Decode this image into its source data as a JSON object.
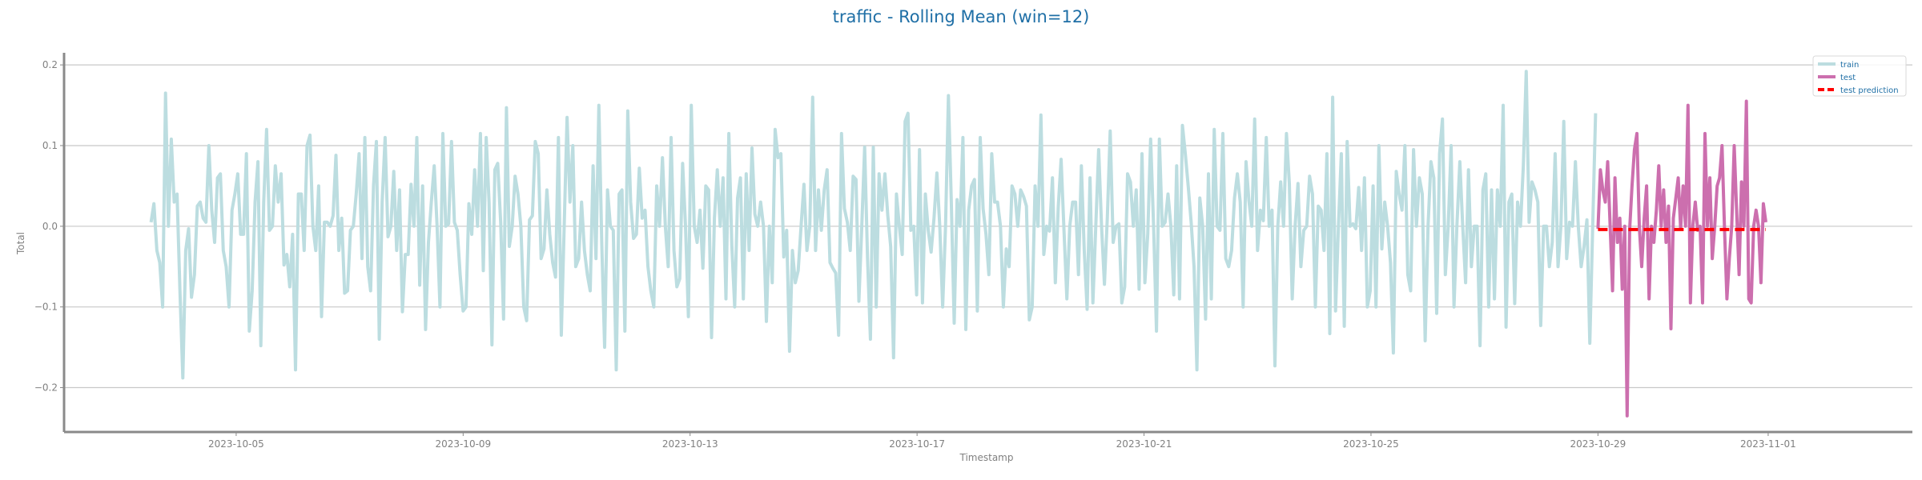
{
  "chart_data": {
    "type": "line",
    "title": "traffic - Rolling Mean (win=12)",
    "xlabel": "Timestamp",
    "ylabel": "Total",
    "ylim": [
      -0.255,
      0.215
    ],
    "xlim": [
      "2023-10-01T23:12",
      "2023-11-03T13:00"
    ],
    "x_ticks": [
      "2023-10-05",
      "2023-10-09",
      "2023-10-13",
      "2023-10-17",
      "2023-10-21",
      "2023-10-25",
      "2023-10-29",
      "2023-11-01"
    ],
    "y_ticks": [
      -0.2,
      -0.1,
      0.0,
      0.1,
      0.2
    ],
    "y_tick_labels": [
      "−0.2",
      "−0.1",
      "0.0",
      "0.1",
      "0.2"
    ],
    "grid": true,
    "legend_position": "top-right",
    "legend": [
      "train",
      "test",
      "test prediction"
    ],
    "series": [
      {
        "name": "train",
        "color": "#bcdde0",
        "style": "solid",
        "x_start": "2023-10-03T12:00",
        "x_end": "2023-10-28T23:00",
        "values": [
          0.005,
          0.028,
          -0.03,
          -0.045,
          -0.1,
          0.165,
          0.0,
          0.108,
          0.03,
          0.04,
          -0.08,
          -0.188,
          -0.03,
          -0.003,
          -0.088,
          -0.06,
          0.025,
          0.03,
          0.01,
          0.005,
          0.1,
          0.02,
          -0.02,
          0.06,
          0.065,
          -0.03,
          -0.05,
          -0.1,
          0.02,
          0.04,
          0.065,
          -0.01,
          -0.01,
          0.09,
          -0.13,
          -0.08,
          0.03,
          0.08,
          -0.148,
          0.03,
          0.12,
          -0.005,
          0.0,
          0.075,
          0.03,
          0.065,
          -0.048,
          -0.035,
          -0.075,
          -0.01,
          -0.178,
          0.04,
          0.04,
          -0.03,
          0.1,
          0.113,
          0.0,
          -0.03,
          0.05,
          -0.112,
          0.005,
          0.005,
          0.0,
          0.013,
          0.088,
          -0.03,
          0.01,
          -0.083,
          -0.08,
          -0.005,
          0.0,
          0.04,
          0.09,
          -0.04,
          0.11,
          -0.05,
          -0.08,
          0.05,
          0.105,
          -0.14,
          0.03,
          0.11,
          -0.013,
          0.0,
          0.068,
          -0.03,
          0.045,
          -0.106,
          -0.035,
          -0.035,
          0.052,
          0.0,
          0.11,
          -0.073,
          0.05,
          -0.128,
          -0.02,
          0.03,
          0.075,
          0.0,
          -0.1,
          0.115,
          0.0,
          0.003,
          0.105,
          0.005,
          -0.005,
          -0.06,
          -0.105,
          -0.1,
          0.028,
          -0.01,
          0.07,
          0.0,
          0.115,
          -0.055,
          0.11,
          0.03,
          -0.147,
          0.07,
          0.078,
          0.005,
          -0.115,
          0.147,
          -0.025,
          0.0,
          0.062,
          0.04,
          0.0,
          -0.1,
          -0.117,
          0.008,
          0.013,
          0.105,
          0.09,
          -0.04,
          -0.028,
          0.045,
          -0.01,
          -0.045,
          -0.063,
          0.11,
          -0.135,
          0.0,
          0.135,
          0.03,
          0.1,
          -0.05,
          -0.04,
          0.03,
          -0.03,
          -0.06,
          -0.08,
          0.075,
          -0.04,
          0.15,
          -0.02,
          -0.15,
          0.045,
          0.0,
          -0.005,
          -0.178,
          0.04,
          0.045,
          -0.13,
          0.143,
          0.03,
          -0.015,
          -0.01,
          0.072,
          0.01,
          0.02,
          -0.05,
          -0.08,
          -0.1,
          0.05,
          0.0,
          0.085,
          0.0,
          -0.05,
          0.11,
          -0.03,
          -0.075,
          -0.065,
          0.078,
          0.0,
          -0.112,
          0.15,
          0.0,
          -0.02,
          0.02,
          -0.052,
          0.05,
          0.045,
          -0.138,
          0.01,
          0.07,
          0.0,
          0.06,
          -0.09,
          0.115,
          -0.023,
          -0.1,
          0.035,
          0.06,
          -0.09,
          0.065,
          -0.03,
          0.097,
          0.015,
          0.0,
          0.03,
          0.0,
          -0.118,
          0.0,
          -0.07,
          0.12,
          0.085,
          0.09,
          -0.038,
          -0.005,
          -0.155,
          -0.03,
          -0.07,
          -0.055,
          0.0,
          0.052,
          -0.03,
          0.0,
          0.16,
          -0.03,
          0.045,
          -0.005,
          0.045,
          0.07,
          -0.045,
          -0.052,
          -0.058,
          -0.135,
          0.115,
          0.022,
          0.005,
          -0.03,
          0.062,
          0.058,
          -0.093,
          0.0,
          0.098,
          -0.04,
          -0.14,
          0.098,
          -0.1,
          0.065,
          0.02,
          0.065,
          0.013,
          -0.025,
          -0.163,
          0.04,
          0.0,
          -0.035,
          0.13,
          0.14,
          -0.005,
          0.0,
          -0.085,
          0.095,
          -0.095,
          0.04,
          -0.005,
          -0.032,
          0.01,
          0.066,
          0.0,
          -0.1,
          0.0,
          0.162,
          0.03,
          -0.12,
          0.033,
          0.0,
          0.11,
          -0.128,
          0.02,
          0.05,
          0.058,
          -0.105,
          0.11,
          0.022,
          -0.01,
          -0.06,
          0.09,
          0.03,
          0.03,
          0.0,
          -0.1,
          -0.028,
          -0.05,
          0.05,
          0.04,
          0.0,
          0.045,
          0.037,
          0.025,
          -0.116,
          -0.1,
          0.05,
          0.0,
          0.138,
          -0.035,
          0.0,
          -0.006,
          0.06,
          -0.07,
          0.023,
          0.083,
          -0.005,
          -0.09,
          0.0,
          0.03,
          0.03,
          -0.06,
          0.075,
          -0.03,
          -0.103,
          0.06,
          -0.095,
          0.0,
          0.095,
          0.0,
          -0.072,
          0.01,
          0.118,
          -0.02,
          0.0,
          0.003,
          -0.095,
          -0.075,
          0.065,
          0.055,
          0.0,
          0.045,
          -0.078,
          0.09,
          -0.07,
          -0.01,
          0.108,
          0.0,
          -0.13,
          0.108,
          0.0,
          0.005,
          0.04,
          0.0,
          -0.085,
          0.075,
          -0.09,
          0.125,
          0.09,
          0.05,
          0.005,
          -0.05,
          -0.178,
          0.035,
          0.0,
          -0.115,
          0.065,
          -0.09,
          0.12,
          0.0,
          -0.005,
          0.115,
          -0.04,
          -0.05,
          -0.03,
          0.035,
          0.065,
          0.03,
          -0.1,
          0.08,
          0.032,
          0.0,
          0.133,
          -0.03,
          0.02,
          0.007,
          0.11,
          0.0,
          0.02,
          -0.173,
          0.0,
          0.055,
          0.0,
          0.115,
          0.053,
          -0.09,
          0.0,
          0.053,
          -0.05,
          -0.005,
          0.0,
          0.062,
          0.04,
          -0.1,
          0.025,
          0.02,
          -0.03,
          0.09,
          -0.133,
          0.16,
          -0.105,
          0.0,
          0.09,
          -0.124,
          0.105,
          0.0,
          0.003,
          -0.003,
          0.048,
          -0.03,
          0.06,
          -0.1,
          -0.08,
          0.05,
          -0.1,
          0.1,
          -0.028,
          0.03,
          0.0,
          -0.045,
          -0.157,
          0.068,
          0.04,
          0.02,
          0.1,
          -0.06,
          -0.08,
          0.095,
          0.0,
          0.06,
          0.04,
          -0.142,
          0.0,
          0.08,
          0.06,
          -0.108,
          0.09,
          0.133,
          -0.06,
          0.0,
          0.1,
          -0.1,
          0.0,
          0.08,
          0.0,
          -0.07,
          0.07,
          -0.05,
          0.0,
          0.0,
          -0.148,
          0.045,
          0.065,
          -0.1,
          0.045,
          -0.09,
          0.045,
          0.0,
          0.15,
          -0.125,
          0.03,
          0.04,
          -0.096,
          0.03,
          0.0,
          0.075,
          0.192,
          0.005,
          0.055,
          0.045,
          0.03,
          -0.123,
          0.0,
          0.0,
          -0.05,
          -0.02,
          0.09,
          -0.05,
          0.0,
          0.13,
          -0.04,
          0.005,
          0.0,
          0.08,
          0.0,
          -0.05,
          -0.025,
          0.008,
          -0.145,
          0.0,
          0.14
        ]
      },
      {
        "name": "test",
        "color": "#cc6fae",
        "style": "solid",
        "x_start": "2023-10-29T00:00",
        "x_end": "2023-10-31T23:00",
        "values": [
          -0.003,
          0.07,
          0.045,
          0.03,
          0.08,
          0.0,
          -0.08,
          0.06,
          -0.02,
          0.01,
          -0.078,
          0.0,
          -0.235,
          -0.005,
          0.05,
          0.095,
          0.115,
          0.0,
          -0.05,
          0.01,
          0.05,
          -0.09,
          0.0,
          -0.02,
          0.02,
          0.075,
          0.0,
          0.045,
          -0.02,
          0.025,
          -0.127,
          0.01,
          0.035,
          0.06,
          -0.003,
          0.05,
          0.0,
          0.15,
          -0.095,
          0.0,
          0.03,
          -0.005,
          0.0,
          -0.095,
          0.115,
          0.0,
          0.06,
          -0.04,
          0.0,
          0.05,
          0.06,
          0.1,
          0.0,
          -0.09,
          -0.04,
          0.0,
          0.1,
          0.02,
          -0.06,
          0.055,
          0.0,
          0.155,
          -0.09,
          -0.095,
          0.0,
          0.02,
          0.0,
          -0.07,
          0.028,
          0.005
        ]
      },
      {
        "name": "test prediction",
        "color": "#ff0000",
        "style": "dashed",
        "x_start": "2023-10-29T00:00",
        "x_end": "2023-10-31T23:00",
        "values": [
          -0.004,
          -0.004,
          -0.004,
          -0.004,
          -0.004,
          -0.004,
          -0.004,
          -0.004,
          -0.004,
          -0.004,
          -0.004,
          -0.004,
          -0.004,
          -0.004,
          -0.004,
          -0.004,
          -0.004,
          -0.004,
          -0.004,
          -0.004,
          -0.004,
          -0.004,
          -0.004,
          -0.004,
          -0.004,
          -0.004,
          -0.004,
          -0.004,
          -0.004,
          -0.004,
          -0.004,
          -0.004,
          -0.004,
          -0.004,
          -0.004,
          -0.004,
          -0.004,
          -0.004,
          -0.004,
          -0.004,
          -0.004,
          -0.004,
          -0.004,
          -0.004,
          -0.004,
          -0.004,
          -0.004,
          -0.004,
          -0.004,
          -0.004,
          -0.004,
          -0.004,
          -0.004,
          -0.004,
          -0.004,
          -0.004,
          -0.004,
          -0.004,
          -0.004,
          -0.004,
          -0.004,
          -0.004,
          -0.004,
          -0.004,
          -0.004,
          -0.004,
          -0.004,
          -0.004,
          -0.004,
          -0.004
        ]
      }
    ]
  }
}
